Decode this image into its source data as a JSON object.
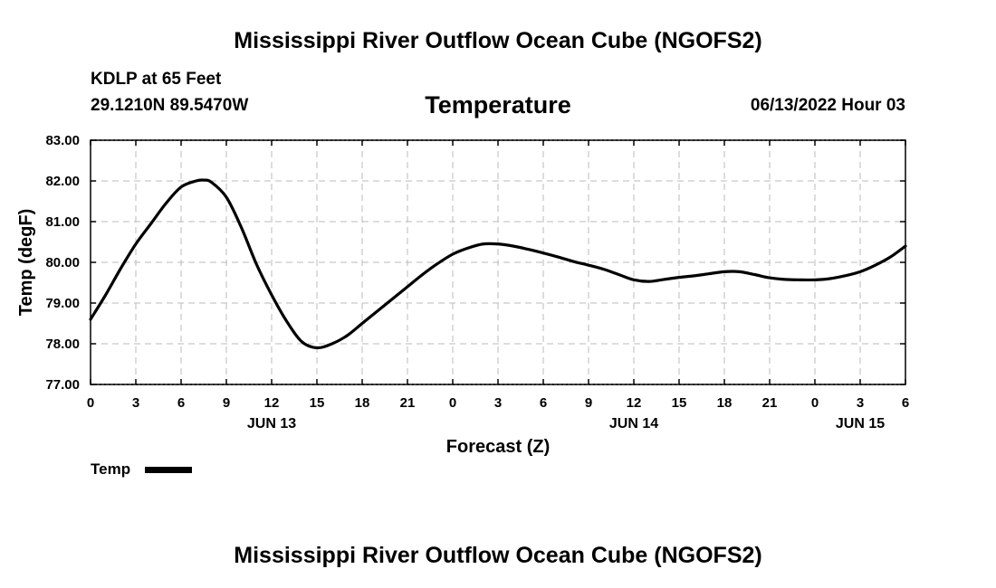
{
  "header": {
    "title": "Mississippi River Outflow Ocean Cube (NGOFS2)",
    "station": "KDLP at 65 Feet",
    "coords": "29.1210N  89.5470W",
    "variable": "Temperature",
    "datetime": "06/13/2022 Hour 03"
  },
  "footer": {
    "title": "Mississippi River Outflow Ocean Cube (NGOFS2)"
  },
  "legend": {
    "label": "Temp",
    "color": "#000000"
  },
  "chart_data": {
    "type": "line",
    "xlabel": "Forecast (Z)",
    "ylabel": "Temp (degF)",
    "xlim": [
      0,
      54
    ],
    "ylim": [
      77,
      83
    ],
    "grid": true,
    "x_tick_values": [
      0,
      3,
      6,
      9,
      12,
      15,
      18,
      21,
      24,
      27,
      30,
      33,
      36,
      39,
      42,
      45,
      48,
      51,
      54
    ],
    "x_tick_labels": [
      "0",
      "3",
      "6",
      "9",
      "12",
      "15",
      "18",
      "21",
      "0",
      "3",
      "6",
      "9",
      "12",
      "15",
      "18",
      "21",
      "0",
      "3",
      "6"
    ],
    "y_tick_values": [
      77,
      78,
      79,
      80,
      81,
      82,
      83
    ],
    "y_tick_labels": [
      "77.00",
      "78.00",
      "79.00",
      "80.00",
      "81.00",
      "82.00",
      "83.00"
    ],
    "day_labels": [
      {
        "x": 12,
        "label": "JUN 13"
      },
      {
        "x": 36,
        "label": "JUN 14"
      },
      {
        "x": 51,
        "label": "JUN 15"
      }
    ],
    "series": [
      {
        "name": "Temp",
        "x": [
          0,
          1,
          2,
          3,
          4,
          5,
          6,
          7,
          7.5,
          8,
          9,
          10,
          11,
          12,
          13,
          14,
          15,
          16,
          17,
          18,
          19,
          20,
          21,
          22,
          23,
          24,
          25,
          26,
          27,
          28,
          29,
          30,
          31,
          32,
          33,
          34,
          35,
          36,
          37,
          38,
          39,
          40,
          41,
          42,
          43,
          44,
          45,
          46,
          47,
          48,
          49,
          50,
          51,
          52,
          53,
          54
        ],
        "values": [
          78.6,
          79.2,
          79.85,
          80.45,
          80.95,
          81.45,
          81.85,
          82.0,
          82.02,
          81.97,
          81.6,
          80.85,
          79.95,
          79.2,
          78.55,
          78.05,
          77.9,
          78.0,
          78.2,
          78.5,
          78.8,
          79.1,
          79.4,
          79.7,
          79.97,
          80.2,
          80.35,
          80.45,
          80.45,
          80.4,
          80.32,
          80.23,
          80.13,
          80.02,
          79.93,
          79.83,
          79.7,
          79.57,
          79.53,
          79.58,
          79.63,
          79.67,
          79.72,
          79.77,
          79.77,
          79.7,
          79.62,
          79.58,
          79.57,
          79.57,
          79.6,
          79.67,
          79.77,
          79.93,
          80.13,
          80.4
        ]
      }
    ]
  }
}
